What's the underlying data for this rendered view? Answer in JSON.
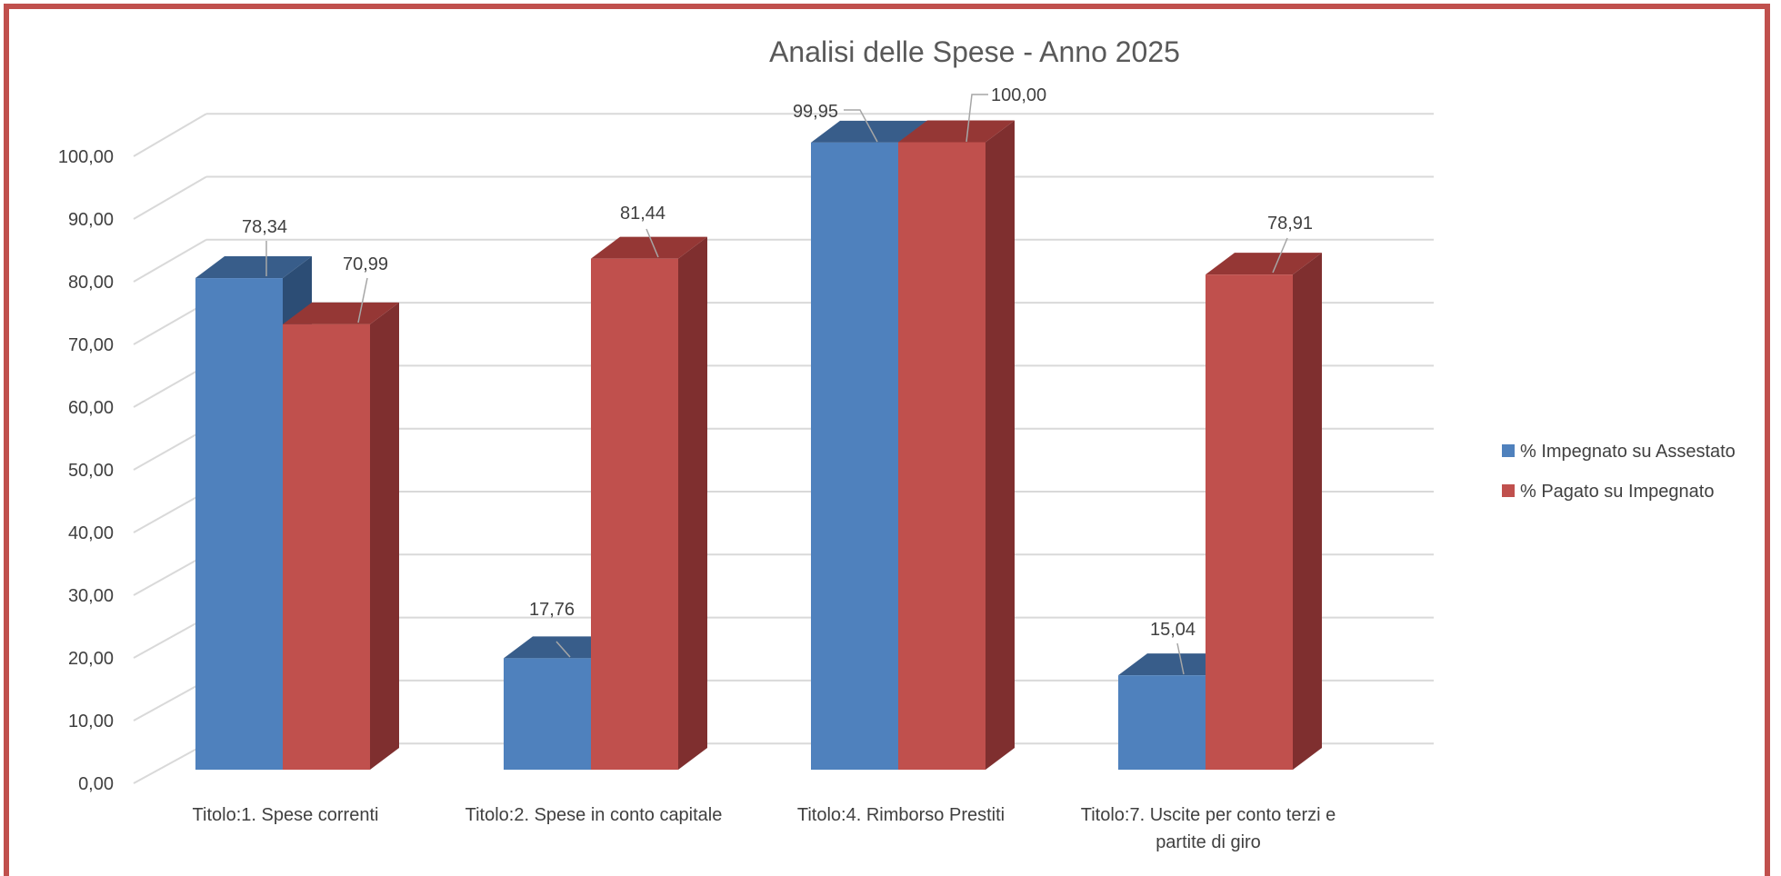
{
  "chart_data": {
    "type": "bar",
    "title": "Analisi delle Spese - Anno 2025",
    "categories": [
      [
        "Titolo:1. Spese correnti"
      ],
      [
        "Titolo:2. Spese in conto capitale"
      ],
      [
        "Titolo:4. Rimborso Prestiti"
      ],
      [
        "Titolo:7. Uscite per conto terzi e",
        "partite di giro"
      ]
    ],
    "series": [
      {
        "name": "% Impegnato su Assestato",
        "values": [
          78.34,
          17.76,
          99.95,
          15.04
        ],
        "color": "#4f81bd",
        "top_color": "#385d8a"
      },
      {
        "name": "% Pagato su Impegnato",
        "values": [
          70.99,
          81.44,
          100.0,
          78.91
        ],
        "color": "#c0504d",
        "top_color": "#953735",
        "side_color": "#7f2f2f"
      }
    ],
    "data_labels": [
      [
        "78,34",
        "17,76",
        "99,95",
        "15,04"
      ],
      [
        "70,99",
        "81,44",
        "100,00",
        "78,91"
      ]
    ],
    "y_ticks": [
      "0,00",
      "10,00",
      "20,00",
      "30,00",
      "40,00",
      "50,00",
      "60,00",
      "70,00",
      "80,00",
      "90,00",
      "100,00"
    ],
    "ylim": [
      0,
      100
    ],
    "grid": true,
    "legend_position": "right",
    "style": "3d-clustered-column"
  }
}
